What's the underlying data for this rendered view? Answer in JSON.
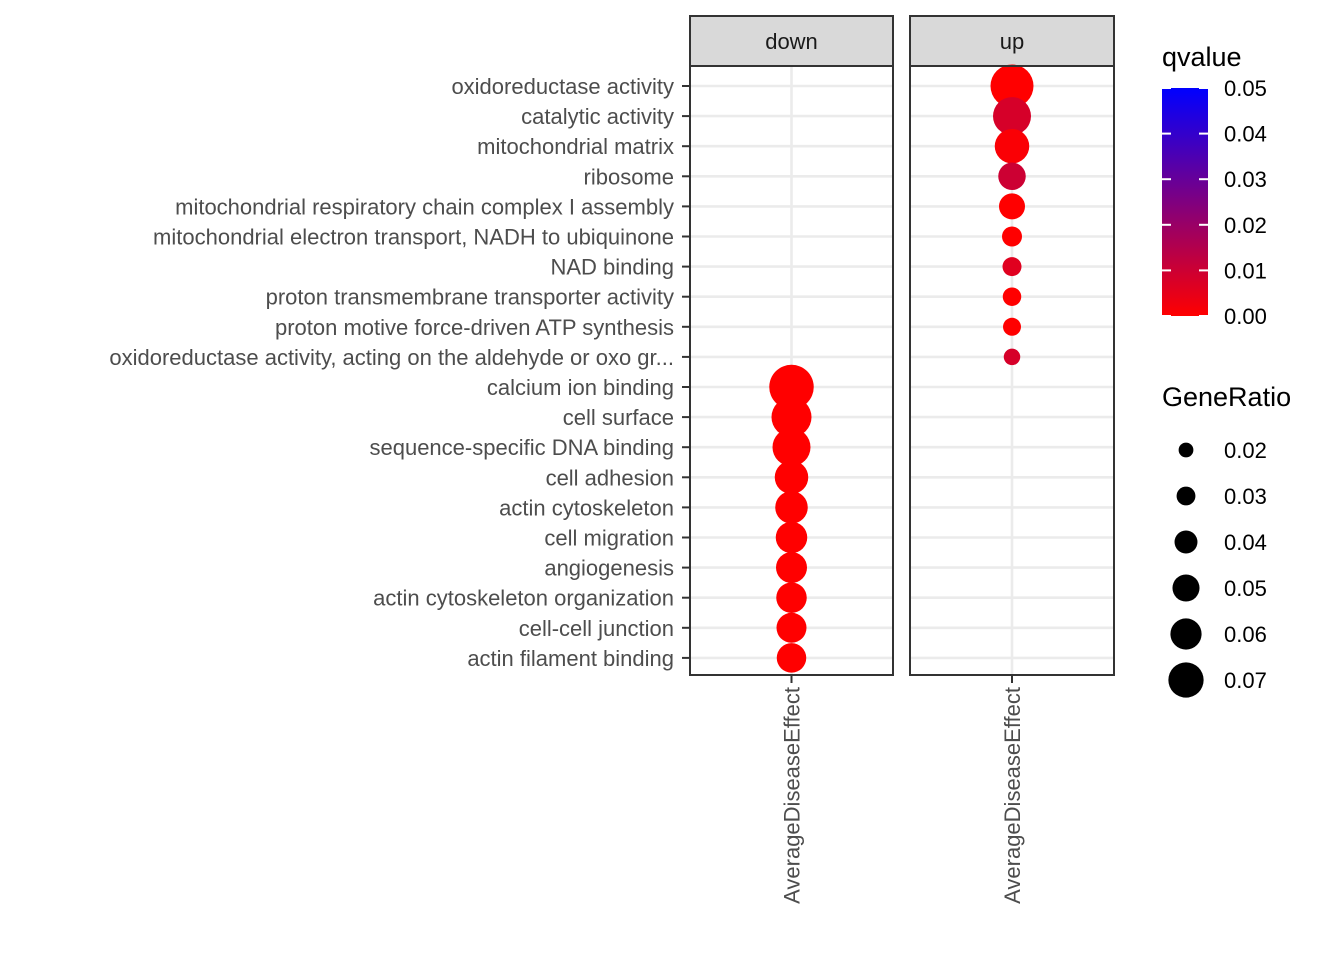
{
  "chart_data": {
    "type": "scatter",
    "x_category": "AverageDiseaseEffect",
    "panels": [
      "down",
      "up"
    ],
    "y_categories": [
      "oxidoreductase activity",
      "catalytic activity",
      "mitochondrial matrix",
      "ribosome",
      "mitochondrial respiratory chain complex I assembly",
      "mitochondrial electron transport, NADH to ubiquinone",
      "NAD binding",
      "proton transmembrane transporter activity",
      "proton motive force-driven ATP synthesis",
      "oxidoreductase activity, acting on the aldehyde or oxo gr...",
      "calcium ion binding",
      "cell surface",
      "sequence-specific DNA binding",
      "cell adhesion",
      "actin cytoskeleton",
      "cell migration",
      "angiogenesis",
      "actin cytoskeleton organization",
      "cell-cell junction",
      "actin filament binding"
    ],
    "points": [
      {
        "panel": "down",
        "term": "calcium ion binding",
        "gene_ratio": 0.073,
        "qvalue": 0.0
      },
      {
        "panel": "down",
        "term": "cell surface",
        "gene_ratio": 0.064,
        "qvalue": 0.0
      },
      {
        "panel": "down",
        "term": "sequence-specific DNA binding",
        "gene_ratio": 0.06,
        "qvalue": 0.0
      },
      {
        "panel": "down",
        "term": "cell adhesion",
        "gene_ratio": 0.051,
        "qvalue": 0.0
      },
      {
        "panel": "down",
        "term": "actin cytoskeleton",
        "gene_ratio": 0.049,
        "qvalue": 0.0
      },
      {
        "panel": "down",
        "term": "cell migration",
        "gene_ratio": 0.047,
        "qvalue": 0.0
      },
      {
        "panel": "down",
        "term": "angiogenesis",
        "gene_ratio": 0.046,
        "qvalue": 0.0
      },
      {
        "panel": "down",
        "term": "actin cytoskeleton organization",
        "gene_ratio": 0.045,
        "qvalue": 0.0
      },
      {
        "panel": "down",
        "term": "cell-cell junction",
        "gene_ratio": 0.044,
        "qvalue": 0.0
      },
      {
        "panel": "down",
        "term": "actin filament binding",
        "gene_ratio": 0.043,
        "qvalue": 0.0
      },
      {
        "panel": "up",
        "term": "oxidoreductase activity",
        "gene_ratio": 0.07,
        "qvalue": 0.0
      },
      {
        "panel": "up",
        "term": "catalytic activity",
        "gene_ratio": 0.06,
        "qvalue": 0.008
      },
      {
        "panel": "up",
        "term": "mitochondrial matrix",
        "gene_ratio": 0.053,
        "qvalue": 0.001
      },
      {
        "panel": "up",
        "term": "ribosome",
        "gene_ratio": 0.039,
        "qvalue": 0.01
      },
      {
        "panel": "up",
        "term": "mitochondrial respiratory chain complex I assembly",
        "gene_ratio": 0.036,
        "qvalue": 0.0
      },
      {
        "panel": "up",
        "term": "mitochondrial electron transport, NADH to ubiquinone",
        "gene_ratio": 0.024,
        "qvalue": 0.0
      },
      {
        "panel": "up",
        "term": "NAD binding",
        "gene_ratio": 0.022,
        "qvalue": 0.006
      },
      {
        "panel": "up",
        "term": "proton transmembrane transporter activity",
        "gene_ratio": 0.021,
        "qvalue": 0.0
      },
      {
        "panel": "up",
        "term": "proton motive force-driven ATP synthesis",
        "gene_ratio": 0.02,
        "qvalue": 0.0
      },
      {
        "panel": "up",
        "term": "oxidoreductase activity, acting on the aldehyde or oxo gr...",
        "gene_ratio": 0.017,
        "qvalue": 0.008
      }
    ],
    "color_legend": {
      "title": "qvalue",
      "range": [
        0.0,
        0.05
      ],
      "low_color": "#ff0000",
      "high_color": "#0000ff",
      "breaks": [
        "0.05",
        "0.04",
        "0.03",
        "0.02",
        "0.01",
        "0.00"
      ]
    },
    "size_legend": {
      "title": "GeneRatio",
      "breaks": [
        "0.02",
        "0.03",
        "0.04",
        "0.05",
        "0.06",
        "0.07"
      ],
      "break_values": [
        0.02,
        0.03,
        0.04,
        0.05,
        0.06,
        0.07
      ]
    },
    "grid": true,
    "theme": "bw",
    "legend_position": "right"
  }
}
